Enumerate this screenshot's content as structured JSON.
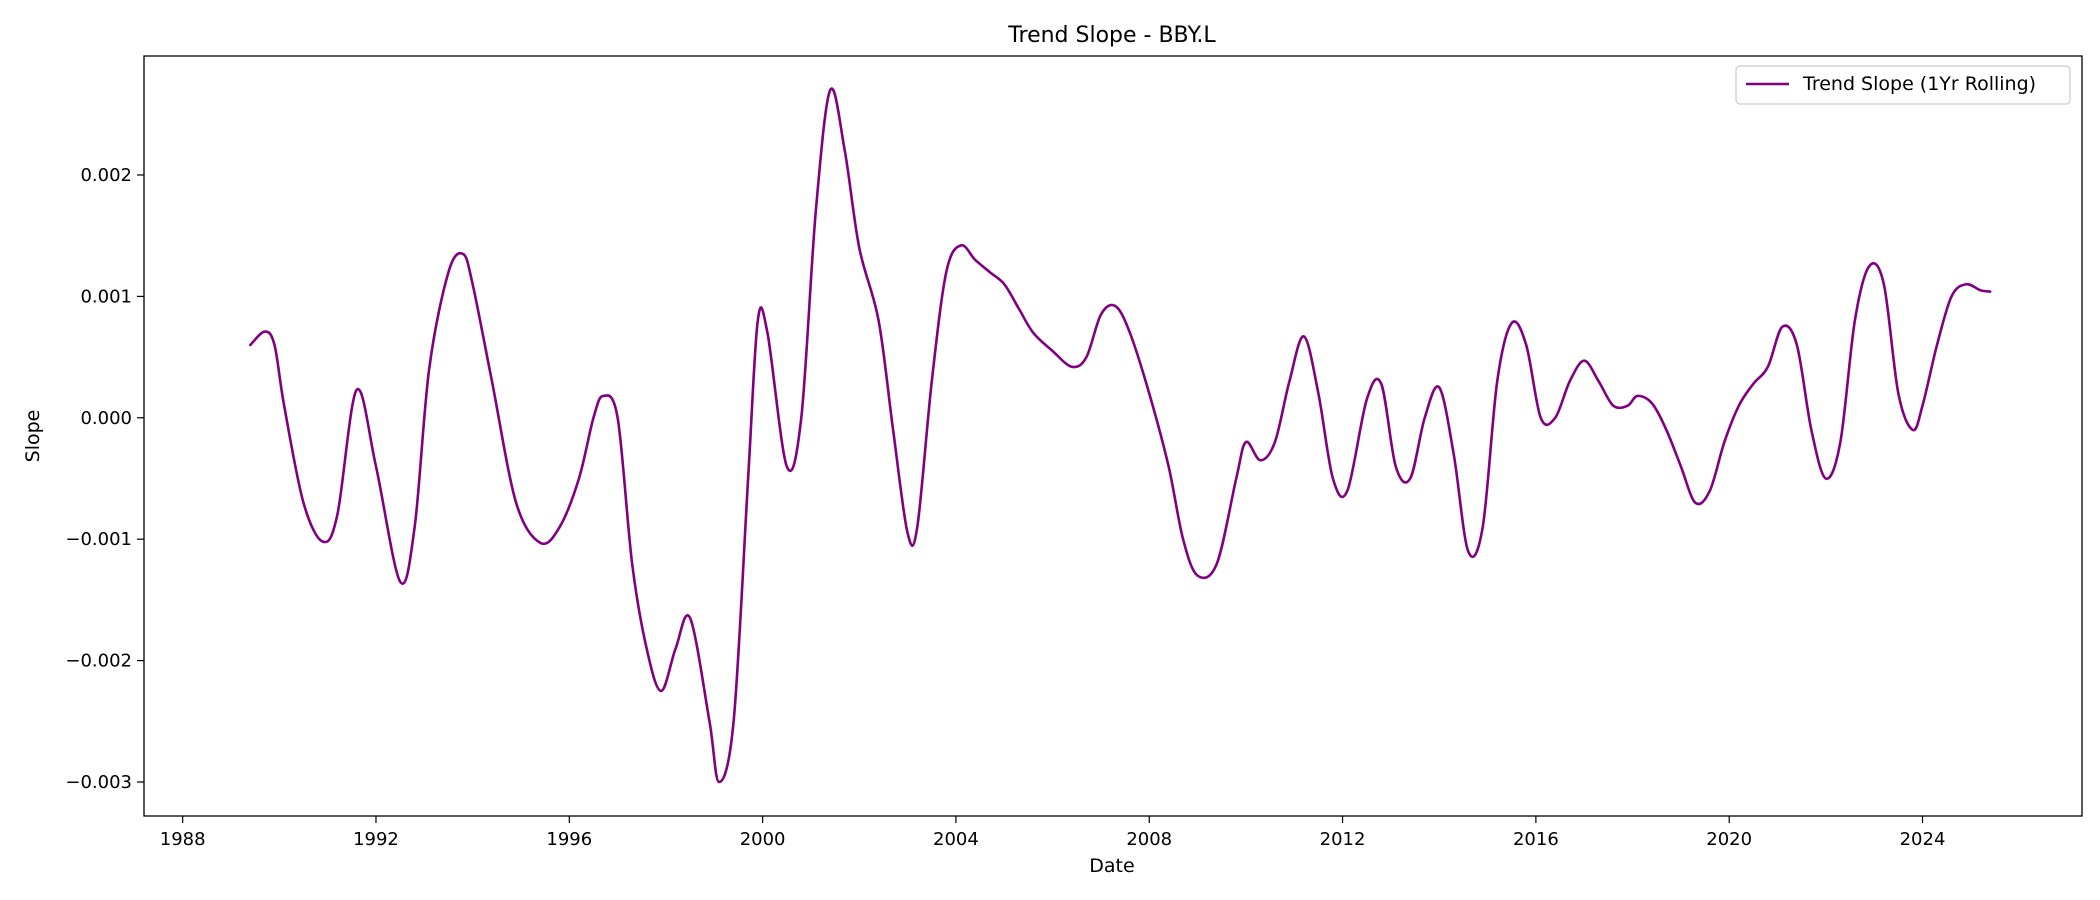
{
  "chart_data": {
    "type": "line",
    "title": "Trend Slope - BBY.L",
    "xlabel": "Date",
    "ylabel": "Slope",
    "xlim": [
      1987.2,
      2027.3
    ],
    "ylim": [
      -0.00328,
      0.00298
    ],
    "x_ticks": [
      1988,
      1992,
      1996,
      2000,
      2004,
      2008,
      2012,
      2016,
      2020,
      2024
    ],
    "y_ticks": [
      -0.003,
      -0.002,
      -0.001,
      0.0,
      0.001,
      0.002
    ],
    "y_tick_labels": [
      "−0.003",
      "−0.002",
      "−0.001",
      "0.000",
      "0.001",
      "0.002"
    ],
    "grid": false,
    "legend": {
      "placement": "top-right"
    },
    "series": [
      {
        "name": "Trend Slope (1Yr Rolling)",
        "color": "#800080",
        "x": [
          1989.4,
          1989.7,
          1989.9,
          1990.1,
          1990.5,
          1990.9,
          1991.2,
          1991.6,
          1992.0,
          1992.5,
          1992.8,
          1993.1,
          1993.5,
          1993.8,
          1994.0,
          1994.4,
          1994.9,
          1995.4,
          1995.8,
          1996.2,
          1996.5,
          1996.7,
          1997.0,
          1997.3,
          1997.6,
          1997.9,
          1998.2,
          1998.5,
          1998.9,
          1999.1,
          1999.4,
          1999.7,
          1999.9,
          2000.1,
          2000.5,
          2000.8,
          2001.1,
          2001.4,
          2001.7,
          2002.0,
          2002.4,
          2002.7,
          2003.0,
          2003.2,
          2003.5,
          2003.8,
          2004.1,
          2004.4,
          2004.7,
          2005.0,
          2005.3,
          2005.6,
          2006.0,
          2006.4,
          2006.7,
          2007.0,
          2007.3,
          2007.6,
          2008.0,
          2008.4,
          2008.7,
          2009.0,
          2009.4,
          2009.8,
          2010.0,
          2010.3,
          2010.6,
          2010.9,
          2011.2,
          2011.5,
          2011.8,
          2012.1,
          2012.5,
          2012.8,
          2013.1,
          2013.4,
          2013.7,
          2014.0,
          2014.3,
          2014.6,
          2014.9,
          2015.2,
          2015.5,
          2015.8,
          2016.1,
          2016.4,
          2016.7,
          2017.0,
          2017.3,
          2017.6,
          2017.9,
          2018.1,
          2018.4,
          2018.7,
          2019.0,
          2019.3,
          2019.6,
          2019.9,
          2020.2,
          2020.5,
          2020.8,
          2021.1,
          2021.4,
          2021.7,
          2022.0,
          2022.3,
          2022.6,
          2022.9,
          2023.2,
          2023.5,
          2023.8,
          2024.0,
          2024.3,
          2024.6,
          2024.9,
          2025.2,
          2025.4
        ],
        "y": [
          0.0006,
          0.00071,
          0.0006,
          0.0001,
          -0.0007,
          -0.00102,
          -0.0008,
          0.00023,
          -0.0004,
          -0.00135,
          -0.0009,
          0.0004,
          0.0012,
          0.00135,
          0.0011,
          0.0003,
          -0.0007,
          -0.00103,
          -0.0009,
          -0.0005,
          0.0,
          0.00018,
          0.0,
          -0.0012,
          -0.0019,
          -0.00225,
          -0.0019,
          -0.00165,
          -0.0025,
          -0.003,
          -0.0025,
          -0.0005,
          0.0008,
          0.0007,
          -0.0004,
          0.0,
          0.0017,
          0.0027,
          0.0022,
          0.0014,
          0.0008,
          -0.0001,
          -0.00095,
          -0.0009,
          0.0003,
          0.0012,
          0.00142,
          0.0013,
          0.0012,
          0.0011,
          0.0009,
          0.0007,
          0.00055,
          0.00042,
          0.0005,
          0.00085,
          0.00092,
          0.0007,
          0.0002,
          -0.0004,
          -0.001,
          -0.0013,
          -0.0012,
          -0.0005,
          -0.0002,
          -0.00035,
          -0.0002,
          0.0003,
          0.00067,
          0.0002,
          -0.0005,
          -0.0006,
          0.00015,
          0.00028,
          -0.0004,
          -0.0005,
          0.0,
          0.00025,
          -0.0003,
          -0.0011,
          -0.0009,
          0.0003,
          0.00078,
          0.0006,
          0.0,
          0.0,
          0.0003,
          0.00047,
          0.0003,
          0.0001,
          0.0001,
          0.00018,
          0.00012,
          -0.0001,
          -0.0004,
          -0.0007,
          -0.0006,
          -0.0002,
          0.0001,
          0.00028,
          0.00042,
          0.00075,
          0.0006,
          -0.0001,
          -0.0005,
          -0.0002,
          0.0008,
          0.00125,
          0.0011,
          0.0002,
          -0.0001,
          0.0001,
          0.0006,
          0.001,
          0.0011,
          0.00105,
          0.00104
        ]
      }
    ]
  }
}
